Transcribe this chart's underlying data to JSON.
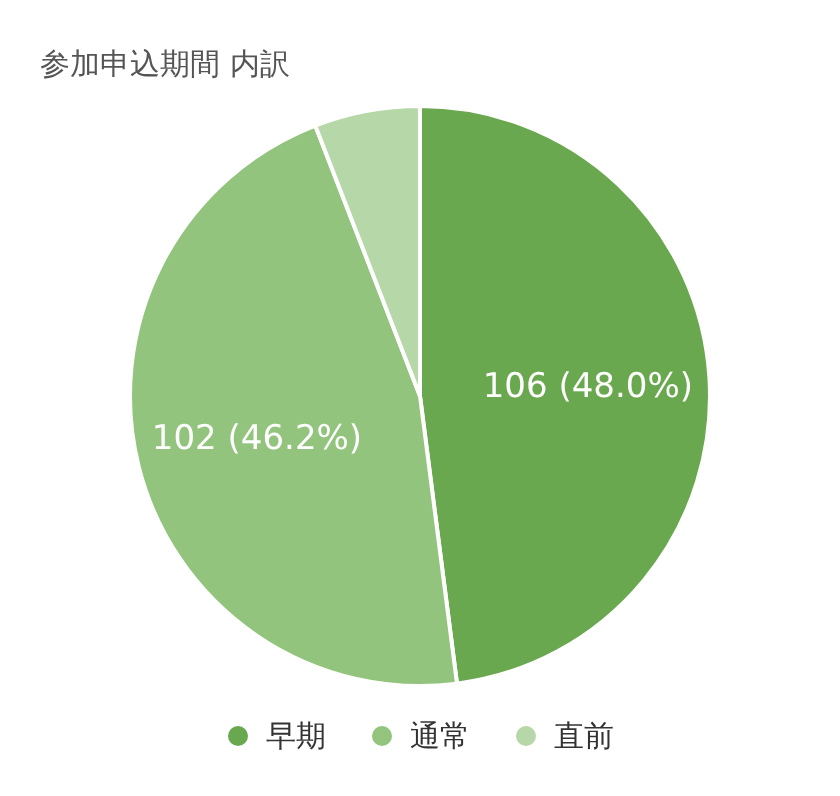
{
  "chart_data": {
    "type": "pie",
    "title": "参加申込期間 内訳",
    "categories": [
      "早期",
      "通常",
      "直前"
    ],
    "values": [
      106,
      102,
      13
    ],
    "colors": [
      "#6aa84f",
      "#93c47d",
      "#b6d7a8"
    ],
    "value_labels": [
      "106 (48.0%)",
      "102 (46.2%)",
      null
    ],
    "legend": "bottom"
  }
}
